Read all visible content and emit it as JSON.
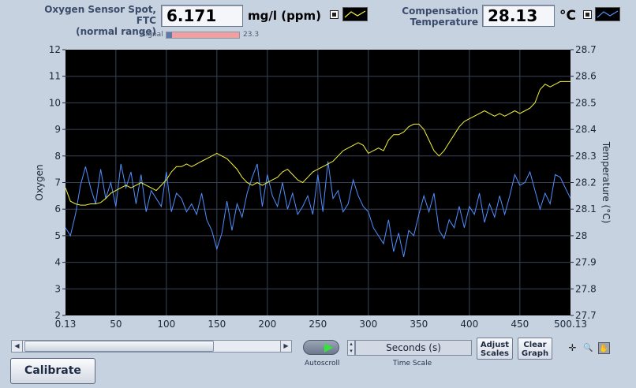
{
  "oxygen": {
    "label": "Oxygen Sensor Spot, FTC\n(normal range)",
    "value": "6.171",
    "unit": "mg/l (ppm)",
    "signal_label": "Signal",
    "signal_value": "23.3",
    "signal_fraction": 0.08
  },
  "compensation": {
    "label": "Compensation\nTemperature",
    "value": "28.13",
    "unit": "°C"
  },
  "colors": {
    "oxygen_trace": "#4f8fff",
    "temperature_trace": "#f2f23a",
    "plot_bg": "#000000",
    "grid": "#3a4256"
  },
  "chart_data": {
    "type": "line",
    "xlim": [
      0.13,
      500.13
    ],
    "x_ticks": [
      "0.13",
      "50",
      "100",
      "150",
      "200",
      "250",
      "300",
      "350",
      "400",
      "450",
      "500.13"
    ],
    "x_tick_values": [
      0.13,
      50,
      100,
      150,
      200,
      250,
      300,
      350,
      400,
      450,
      500.13
    ],
    "ylim_left": [
      2,
      12
    ],
    "y_ticks_left": [
      "2",
      "3",
      "4",
      "5",
      "6",
      "7",
      "8",
      "9",
      "10",
      "11",
      "12"
    ],
    "ylabel_left": "Oxygen",
    "ylim_right": [
      27.7,
      28.7
    ],
    "y_ticks_right": [
      "27.7",
      "27.8",
      "27.9",
      "28",
      "28.1",
      "28.2",
      "28.3",
      "28.4",
      "28.5",
      "28.6",
      "28.7"
    ],
    "ylabel_right": "Temperature (°C)",
    "grid": true,
    "series": [
      {
        "axis": "left",
        "x": [
          0.13,
          5,
          10,
          15,
          20,
          25,
          30,
          35,
          40,
          45,
          50,
          55,
          60,
          65,
          70,
          75,
          80,
          85,
          90,
          95,
          100,
          105,
          110,
          115,
          120,
          125,
          130,
          135,
          140,
          145,
          150,
          155,
          160,
          165,
          170,
          175,
          180,
          185,
          190,
          195,
          200,
          205,
          210,
          215,
          220,
          225,
          230,
          235,
          240,
          245,
          250,
          255,
          260,
          265,
          270,
          275,
          280,
          285,
          290,
          295,
          300,
          305,
          310,
          315,
          320,
          325,
          330,
          335,
          340,
          345,
          350,
          355,
          360,
          365,
          370,
          375,
          380,
          385,
          390,
          395,
          400,
          405,
          410,
          415,
          420,
          425,
          430,
          435,
          440,
          445,
          450,
          455,
          460,
          465,
          470,
          475,
          480,
          485,
          490,
          495,
          500.13
        ],
        "values": [
          5.3,
          5.0,
          5.8,
          6.9,
          7.6,
          6.8,
          6.2,
          7.5,
          6.4,
          7.0,
          6.1,
          7.7,
          6.8,
          7.4,
          6.2,
          7.3,
          5.9,
          6.7,
          6.4,
          6.1,
          7.4,
          5.9,
          6.6,
          6.4,
          5.9,
          6.2,
          5.8,
          6.6,
          5.6,
          5.2,
          4.5,
          5.1,
          6.3,
          5.2,
          6.2,
          5.7,
          6.6,
          7.2,
          7.7,
          6.1,
          7.3,
          6.5,
          6.1,
          7.0,
          6.0,
          6.6,
          5.8,
          6.1,
          6.5,
          5.8,
          7.3,
          5.9,
          7.8,
          6.4,
          6.7,
          5.9,
          6.2,
          7.1,
          6.5,
          6.1,
          5.9,
          5.3,
          5.0,
          4.7,
          5.6,
          4.4,
          5.1,
          4.2,
          5.2,
          5.0,
          5.8,
          6.5,
          5.9,
          6.6,
          5.2,
          4.9,
          5.6,
          5.3,
          6.1,
          5.3,
          6.1,
          5.8,
          6.6,
          5.5,
          6.2,
          5.7,
          6.5,
          5.8,
          6.5,
          7.3,
          6.9,
          7.0,
          7.4,
          6.7,
          6.0,
          6.6,
          6.2,
          7.3,
          7.2,
          6.8,
          6.4
        ]
      },
      {
        "axis": "right",
        "x": [
          0.13,
          5,
          10,
          15,
          20,
          25,
          30,
          35,
          40,
          45,
          50,
          55,
          60,
          65,
          70,
          75,
          80,
          85,
          90,
          95,
          100,
          105,
          110,
          115,
          120,
          125,
          130,
          135,
          140,
          145,
          150,
          155,
          160,
          165,
          170,
          175,
          180,
          185,
          190,
          195,
          200,
          205,
          210,
          215,
          220,
          225,
          230,
          235,
          240,
          245,
          250,
          255,
          260,
          265,
          270,
          275,
          280,
          285,
          290,
          295,
          300,
          305,
          310,
          315,
          320,
          325,
          330,
          335,
          340,
          345,
          350,
          355,
          360,
          365,
          370,
          375,
          380,
          385,
          390,
          395,
          400,
          405,
          410,
          415,
          420,
          425,
          430,
          435,
          440,
          445,
          450,
          455,
          460,
          465,
          470,
          475,
          480,
          485,
          490,
          495,
          500.13
        ],
        "values": [
          28.18,
          28.13,
          28.12,
          28.115,
          28.115,
          28.12,
          28.12,
          28.125,
          28.14,
          28.16,
          28.17,
          28.18,
          28.19,
          28.18,
          28.19,
          28.2,
          28.19,
          28.18,
          28.17,
          28.19,
          28.21,
          28.24,
          28.26,
          28.26,
          28.27,
          28.26,
          28.27,
          28.28,
          28.29,
          28.3,
          28.31,
          28.3,
          28.29,
          28.27,
          28.25,
          28.22,
          28.2,
          28.19,
          28.2,
          28.19,
          28.2,
          28.21,
          28.22,
          28.24,
          28.25,
          28.23,
          28.21,
          28.2,
          28.22,
          28.24,
          28.25,
          28.26,
          28.27,
          28.28,
          28.3,
          28.32,
          28.33,
          28.34,
          28.35,
          28.34,
          28.31,
          28.32,
          28.33,
          28.32,
          28.36,
          28.38,
          28.38,
          28.39,
          28.41,
          28.42,
          28.42,
          28.4,
          28.36,
          28.32,
          28.3,
          28.32,
          28.35,
          28.38,
          28.41,
          28.43,
          28.44,
          28.45,
          28.46,
          28.47,
          28.46,
          28.45,
          28.46,
          28.45,
          28.46,
          28.47,
          28.46,
          28.47,
          28.48,
          28.5,
          28.55,
          28.57,
          28.56,
          28.57,
          28.58,
          28.58,
          28.58
        ]
      }
    ]
  },
  "controls": {
    "autoscroll_label": "Autoscroll",
    "time_scale_value": "Seconds (s)",
    "time_scale_label": "Time Scale",
    "adjust_scales_label": "Adjust\nScales",
    "clear_graph_label": "Clear\nGraph",
    "calibrate_label": "Calibrate",
    "scroll_left_glyph": "◀",
    "scroll_right_glyph": "▶",
    "cursor_tool_glyph": "✛",
    "zoom_tool_glyph": "🔍",
    "pan_tool_glyph": "✋"
  }
}
